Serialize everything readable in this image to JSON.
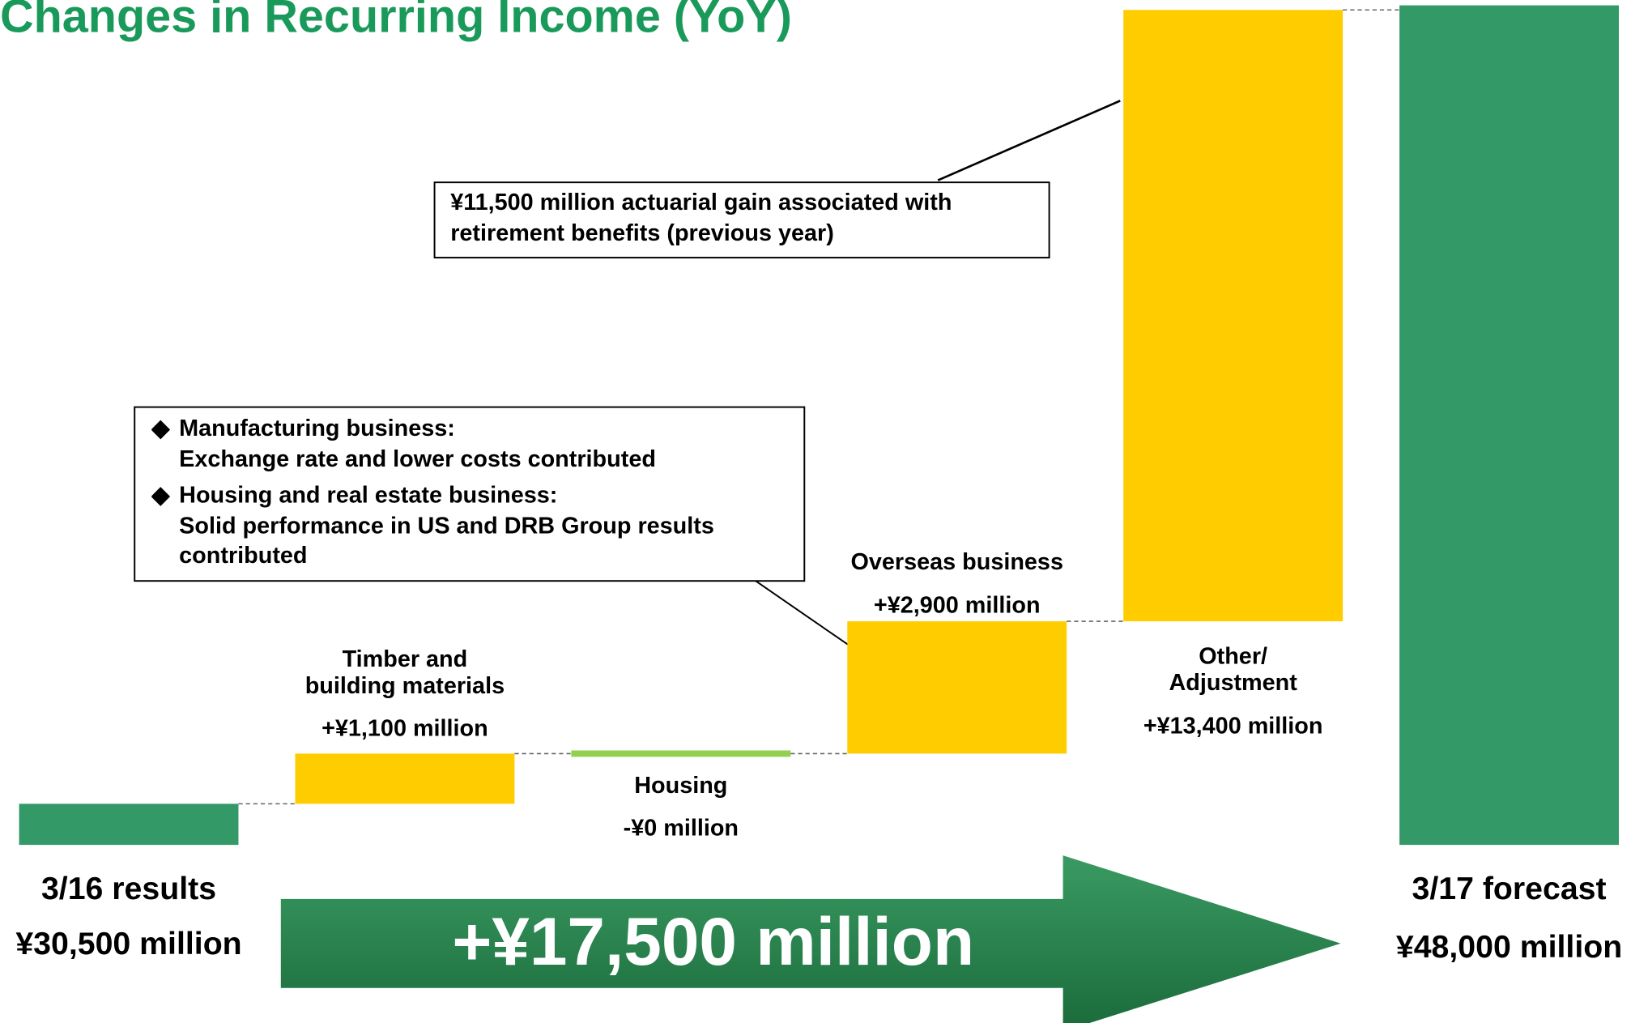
{
  "chart_data": {
    "type": "waterfall",
    "title": "Changes in Recurring Income (YoY)",
    "categories": [
      "3/16 results",
      "Timber and\nbuilding materials",
      "Housing",
      "Overseas business",
      "Other/\nAdjustment",
      "3/17 forecast"
    ],
    "values": [
      30500,
      1100,
      0,
      2900,
      13400,
      48000
    ],
    "value_labels": [
      "¥30,500 million",
      "+¥1,100 million",
      "-¥0 million",
      "+¥2,900 million",
      "+¥13,400 million",
      "¥48,000 million"
    ],
    "kinds": [
      "total",
      "change",
      "change",
      "change",
      "change",
      "total"
    ],
    "colors": {
      "total": "#339966",
      "increase": "#ffcc00",
      "zero": "#92d050"
    },
    "ylim": [
      29600,
      48000
    ],
    "arrow_label": "+¥17,500 million",
    "callouts": [
      {
        "text": "¥11,500 million actuarial gain associated with\nretirement benefits (previous year)"
      },
      {
        "items": [
          {
            "heading": "Manufacturing business:",
            "text": "Exchange rate and lower costs contributed"
          },
          {
            "heading": "Housing and real estate business:",
            "text": "Solid performance in US and DRB Group results contributed"
          }
        ]
      }
    ]
  }
}
